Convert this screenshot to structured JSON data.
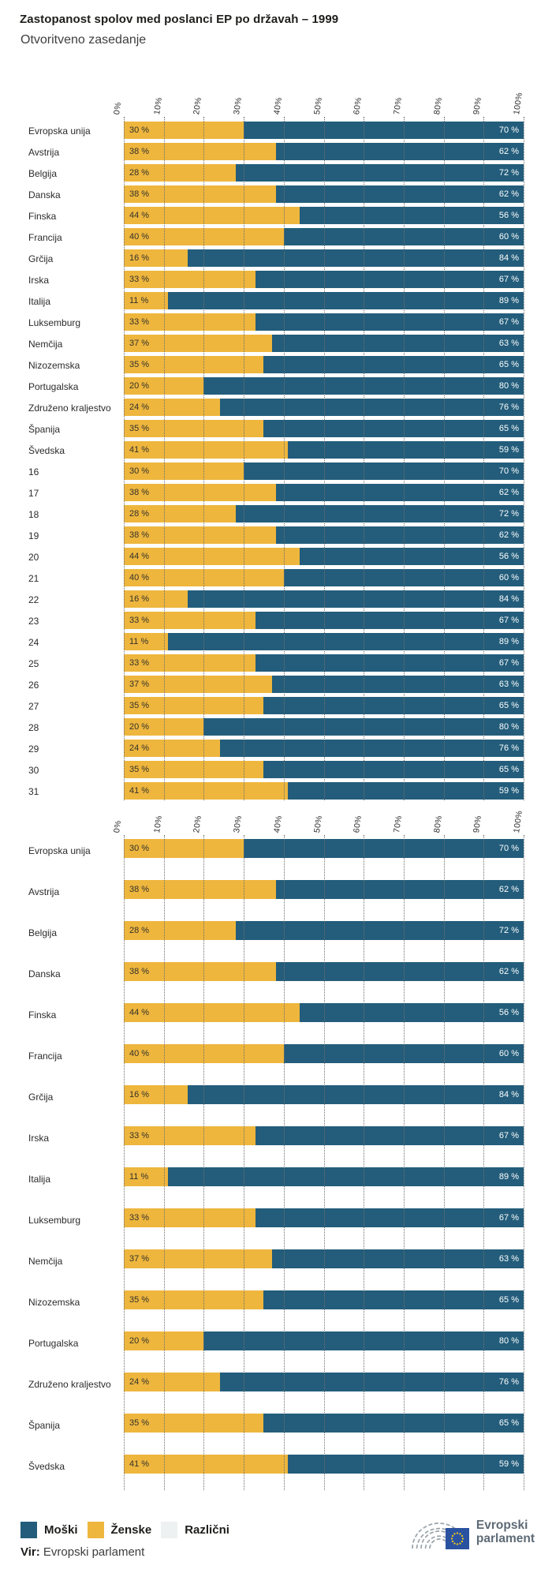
{
  "page_title": "Zastopanost spolov med poslanci EP po državah – 1999",
  "subtitle": "Otvoritveno zasedanje",
  "legend": {
    "items": [
      {
        "label": "Moški",
        "color": "#235d7b"
      },
      {
        "label": "Ženske",
        "color": "#eeb63d"
      },
      {
        "label": "Različni",
        "color": "#eef1f2"
      }
    ]
  },
  "source": {
    "label": "Vir:",
    "text": "Evropski parlament"
  },
  "logo": {
    "line1": "Evropski",
    "line2": "parlament"
  },
  "colors": {
    "moski": "#235d7b",
    "zenske": "#eeb63d",
    "razlicni": "#eef1f2",
    "flag_blue": "#2b52a0",
    "flag_stars": "#f7d117"
  },
  "chart_data": [
    {
      "type": "bar",
      "orientation": "horizontal-stacked",
      "categories": [
        "Evropska unija",
        "Avstrija",
        "Belgija",
        "Danska",
        "Finska",
        "Francija",
        "Grčija",
        "Irska",
        "Italija",
        "Luksemburg",
        "Nemčija",
        "Nizozemska",
        "Portugalska",
        "Združeno kraljestvo",
        "Španija",
        "Švedska",
        "16",
        "17",
        "18",
        "19",
        "20",
        "21",
        "22",
        "23",
        "24",
        "25",
        "26",
        "27",
        "28",
        "29",
        "30",
        "31"
      ],
      "series": [
        {
          "name": "Ženske",
          "color": "#eeb63d",
          "values": [
            30,
            38,
            28,
            38,
            44,
            40,
            16,
            33,
            11,
            33,
            37,
            35,
            20,
            24,
            35,
            41,
            30,
            38,
            28,
            38,
            44,
            40,
            16,
            33,
            11,
            33,
            37,
            35,
            20,
            24,
            35,
            41
          ]
        },
        {
          "name": "Moški",
          "color": "#235d7b",
          "values": [
            70,
            62,
            72,
            62,
            56,
            60,
            84,
            67,
            89,
            67,
            63,
            65,
            80,
            76,
            65,
            59,
            70,
            62,
            72,
            62,
            56,
            60,
            84,
            67,
            89,
            67,
            63,
            65,
            80,
            76,
            65,
            59
          ]
        }
      ],
      "x_ticks": [
        "0%",
        "10%",
        "20%",
        "30%",
        "40%",
        "50%",
        "60%",
        "70%",
        "80%",
        "90%",
        "100%"
      ],
      "xlim": [
        0,
        100
      ],
      "grid": true,
      "value_suffix": " %",
      "legend_position": "bottom"
    },
    {
      "type": "bar",
      "orientation": "horizontal-stacked",
      "categories": [
        "Evropska unija",
        "Avstrija",
        "Belgija",
        "Danska",
        "Finska",
        "Francija",
        "Grčija",
        "Irska",
        "Italija",
        "Luksemburg",
        "Nemčija",
        "Nizozemska",
        "Portugalska",
        "Združeno kraljestvo",
        "Španija",
        "Švedska"
      ],
      "series": [
        {
          "name": "Ženske",
          "color": "#eeb63d",
          "values": [
            30,
            38,
            28,
            38,
            44,
            40,
            16,
            33,
            11,
            33,
            37,
            35,
            20,
            24,
            35,
            41
          ]
        },
        {
          "name": "Moški",
          "color": "#235d7b",
          "values": [
            70,
            62,
            72,
            62,
            56,
            60,
            84,
            67,
            89,
            67,
            63,
            65,
            80,
            76,
            65,
            59
          ]
        }
      ],
      "x_ticks": [
        "0%",
        "10%",
        "20%",
        "30%",
        "40%",
        "50%",
        "60%",
        "70%",
        "80%",
        "90%",
        "100%"
      ],
      "xlim": [
        0,
        100
      ],
      "grid": true,
      "value_suffix": " %",
      "legend_position": "bottom"
    }
  ]
}
